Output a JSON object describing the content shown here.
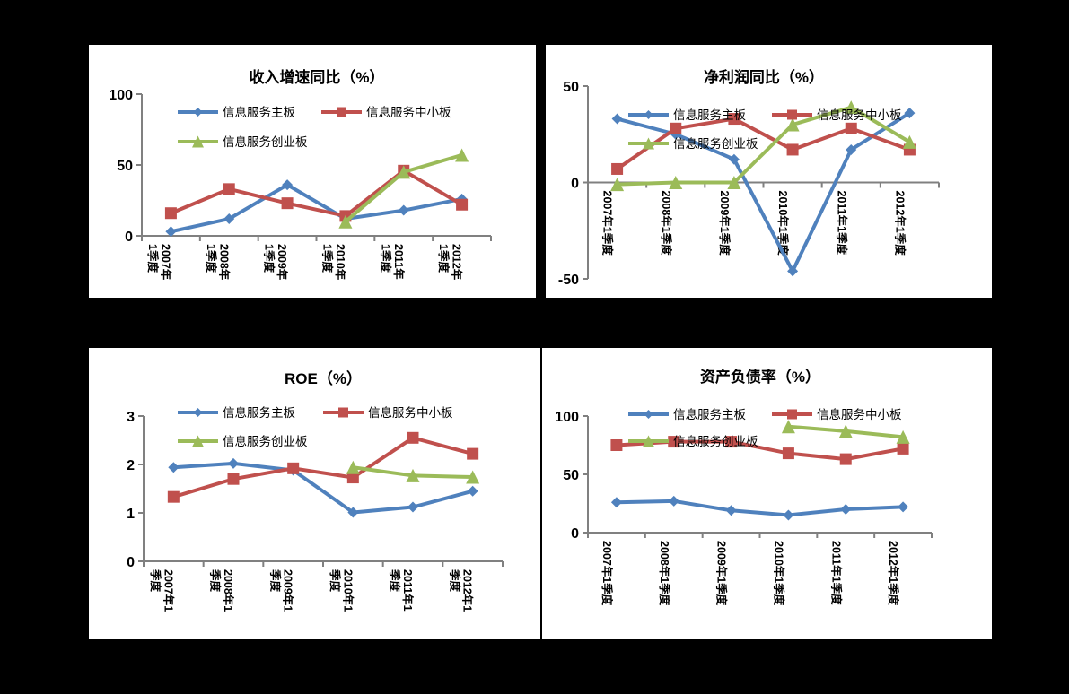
{
  "page": {
    "background": "#000000",
    "panel_background": "#ffffff"
  },
  "palette": {
    "main_board_blue": "#4F81BD",
    "sme_board_red": "#C0504D",
    "gem_board_green": "#9BBB59",
    "axis_gray": "#808080",
    "text_black": "#000000"
  },
  "chart_data": [
    {
      "id": "revenue-growth-yoy",
      "type": "line",
      "title": "收入增速同比（%）",
      "categories": [
        "2007年1季度",
        "2008年1季度",
        "2009年1季度",
        "2010年1季度",
        "2011年1季度",
        "2012年1季度"
      ],
      "x_tick_label_lines": [
        [
          "2007年",
          "1季度"
        ],
        [
          "2008年",
          "1季度"
        ],
        [
          "2009年",
          "1季度"
        ],
        [
          "2010年",
          "1季度"
        ],
        [
          "2011年",
          "1季度"
        ],
        [
          "2012年",
          "1季度"
        ]
      ],
      "ylim": [
        0,
        100
      ],
      "y_ticks": [
        0,
        50,
        100
      ],
      "x_axis_at": 0,
      "grid": false,
      "legend_position": "inside-top-left-two-rows",
      "series": [
        {
          "key": "main-board",
          "name": "信息服务主板",
          "marker": "diamond",
          "color": "#4F81BD",
          "values": [
            3,
            12,
            36,
            12,
            18,
            26
          ]
        },
        {
          "key": "sme-board",
          "name": "信息服务中小板",
          "marker": "square",
          "color": "#C0504D",
          "values": [
            16,
            33,
            23,
            14,
            46,
            22
          ]
        },
        {
          "key": "gem-board",
          "name": "信息服务创业板",
          "marker": "triangle",
          "color": "#9BBB59",
          "values": [
            null,
            null,
            null,
            10,
            45,
            57
          ]
        }
      ]
    },
    {
      "id": "net-profit-yoy",
      "type": "line",
      "title": "净利润同比（%）",
      "categories": [
        "2007年1季度",
        "2008年1季度",
        "2009年1季度",
        "2010年1季度",
        "2011年1季度",
        "2012年1季度"
      ],
      "x_tick_label_lines": [
        [
          "2007年1季度"
        ],
        [
          "2008年1季度"
        ],
        [
          "2009年1季度"
        ],
        [
          "2010年1季度"
        ],
        [
          "2011年1季度"
        ],
        [
          "2012年1季度"
        ]
      ],
      "ylim": [
        -50,
        50
      ],
      "y_ticks": [
        -50,
        0,
        50
      ],
      "x_axis_at": 0,
      "grid": false,
      "legend_position": "inside-top-left-two-rows",
      "series": [
        {
          "key": "main-board",
          "name": "信息服务主板",
          "marker": "diamond",
          "color": "#4F81BD",
          "values": [
            33,
            25,
            12,
            -46,
            17,
            36
          ]
        },
        {
          "key": "sme-board",
          "name": "信息服务中小板",
          "marker": "square",
          "color": "#C0504D",
          "values": [
            7,
            28,
            33,
            17,
            28,
            17
          ]
        },
        {
          "key": "gem-board",
          "name": "信息服务创业板",
          "marker": "triangle",
          "color": "#9BBB59",
          "values": [
            -1,
            0,
            0,
            30,
            39,
            21
          ]
        }
      ]
    },
    {
      "id": "roe",
      "type": "line",
      "title": "ROE（%）",
      "categories": [
        "2007年1季度",
        "2008年1季度",
        "2009年1季度",
        "2010年1季度",
        "2011年1季度",
        "2012年1季度"
      ],
      "x_tick_label_lines": [
        [
          "2007年1",
          "季度"
        ],
        [
          "2008年1",
          "季度"
        ],
        [
          "2009年1",
          "季度"
        ],
        [
          "2010年1",
          "季度"
        ],
        [
          "2011年1",
          "季度"
        ],
        [
          "2012年1",
          "季度"
        ]
      ],
      "ylim": [
        0,
        3
      ],
      "y_ticks": [
        0,
        1,
        2,
        3
      ],
      "x_axis_at": 0,
      "grid": false,
      "legend_position": "inside-top-left-two-rows",
      "series": [
        {
          "key": "main-board",
          "name": "信息服务主板",
          "marker": "diamond",
          "color": "#4F81BD",
          "values": [
            1.94,
            2.02,
            1.88,
            1.01,
            1.12,
            1.45
          ]
        },
        {
          "key": "sme-board",
          "name": "信息服务中小板",
          "marker": "square",
          "color": "#C0504D",
          "values": [
            1.33,
            1.7,
            1.92,
            1.73,
            2.55,
            2.22
          ]
        },
        {
          "key": "gem-board",
          "name": "信息服务创业板",
          "marker": "triangle",
          "color": "#9BBB59",
          "values": [
            null,
            null,
            null,
            1.94,
            1.77,
            1.74
          ]
        }
      ]
    },
    {
      "id": "debt-to-asset-ratio",
      "type": "line",
      "title": "资产负债率（%）",
      "categories": [
        "2007年1季度",
        "2008年1季度",
        "2009年1季度",
        "2010年1季度",
        "2011年1季度",
        "2012年1季度"
      ],
      "x_tick_label_lines": [
        [
          "2007年1季度"
        ],
        [
          "2008年1季度"
        ],
        [
          "2009年1季度"
        ],
        [
          "2010年1季度"
        ],
        [
          "2011年1季度"
        ],
        [
          "2012年1季度"
        ]
      ],
      "ylim": [
        0,
        100
      ],
      "y_ticks": [
        0,
        50,
        100
      ],
      "x_axis_at": 0,
      "grid": false,
      "legend_position": "inside-top-left-two-rows",
      "series": [
        {
          "key": "main-board",
          "name": "信息服务主板",
          "marker": "diamond",
          "color": "#4F81BD",
          "values": [
            26,
            27,
            19,
            15,
            20,
            22
          ]
        },
        {
          "key": "sme-board",
          "name": "信息服务中小板",
          "marker": "square",
          "color": "#C0504D",
          "values": [
            75,
            78,
            78,
            68,
            63,
            72
          ]
        },
        {
          "key": "gem-board",
          "name": "信息服务创业板",
          "marker": "triangle",
          "color": "#9BBB59",
          "values": [
            null,
            null,
            null,
            91,
            87,
            82
          ]
        }
      ]
    }
  ]
}
